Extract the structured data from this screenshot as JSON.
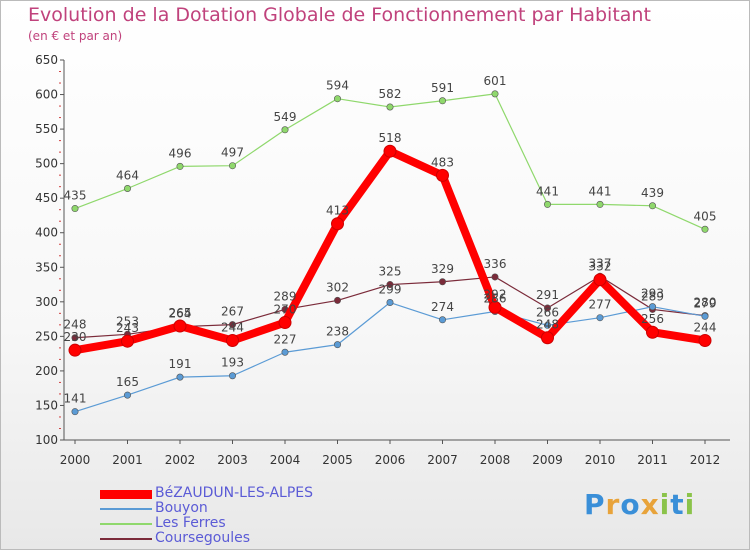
{
  "chart_data": {
    "type": "line",
    "title": "Evolution de la Dotation Globale de Fonctionnement par Habitant",
    "subtitle": "(en € et par an)",
    "xlabel": "",
    "ylabel": "",
    "categories": [
      "2000",
      "2001",
      "2002",
      "2003",
      "2004",
      "2005",
      "2006",
      "2007",
      "2008",
      "2009",
      "2010",
      "2011",
      "2012"
    ],
    "ylim": [
      100,
      650
    ],
    "yticks": [
      100,
      150,
      200,
      250,
      300,
      350,
      400,
      450,
      500,
      550,
      600,
      650
    ],
    "grid": false,
    "legend_position": "bottom-left",
    "series": [
      {
        "name": "BéZAUDUN-LES-ALPES",
        "color": "#ff0000",
        "values": [
          230,
          243,
          265,
          244,
          270,
          413,
          518,
          483,
          292,
          248,
          332,
          256,
          244
        ]
      },
      {
        "name": "Bouyon",
        "color": "#5b9bd5",
        "values": [
          141,
          165,
          191,
          193,
          227,
          238,
          299,
          274,
          286,
          266,
          277,
          293,
          279
        ]
      },
      {
        "name": "Les Ferres",
        "color": "#8fd86c",
        "values": [
          435,
          464,
          496,
          497,
          549,
          594,
          582,
          591,
          601,
          441,
          441,
          439,
          405
        ]
      },
      {
        "name": "Coursegoules",
        "color": "#7b2b3a",
        "values": [
          248,
          253,
          264,
          267,
          289,
          302,
          325,
          329,
          336,
          291,
          337,
          289,
          280
        ]
      }
    ]
  },
  "logo": {
    "letters": [
      "P",
      "r",
      "o",
      "x",
      "i",
      "t",
      "i"
    ],
    "colors": [
      "#3a8fd8",
      "#e8a33a",
      "#3a8fd8",
      "#e8a33a",
      "#8bc34a",
      "#3a8fd8",
      "#8bc34a"
    ]
  }
}
